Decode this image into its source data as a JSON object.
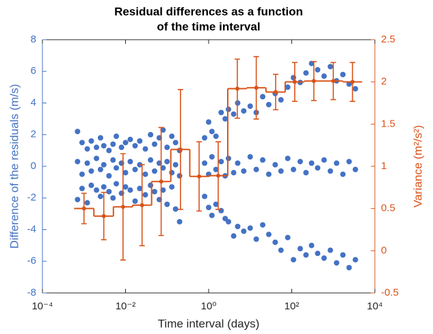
{
  "chart_data": {
    "type": "scatter-step",
    "title": [
      "Residual differences as a function",
      "of the time interval"
    ],
    "x_label": "Time interval (days)",
    "y_label": "Difference of the residuals (m/s)",
    "y2_label": "Variance (m²/s²)",
    "x_scale": "log",
    "xlim": [
      0.0001,
      10000
    ],
    "xticks": [
      {
        "value": 0.0001,
        "label": "10⁻⁴"
      },
      {
        "value": 0.01,
        "label": "10⁻²"
      },
      {
        "value": 1,
        "label": "10⁰"
      },
      {
        "value": 100,
        "label": "10²"
      },
      {
        "value": 10000,
        "label": "10⁴"
      }
    ],
    "ylim": [
      -8,
      8
    ],
    "yticks": [
      -8,
      -6,
      -4,
      -2,
      0,
      2,
      4,
      6,
      8
    ],
    "y2lim": [
      -0.5,
      2.5
    ],
    "y2ticks": [
      -0.5,
      0,
      0.5,
      1,
      1.5,
      2,
      2.5
    ],
    "series": [
      {
        "type": "scatter",
        "color": "#4472c4",
        "x": [
          0.0007,
          0.0007,
          0.0007,
          0.0009,
          0.0009,
          0.0009,
          0.0012,
          0.0012,
          0.0012,
          0.0015,
          0.0015,
          0.0015,
          0.002,
          0.002,
          0.002,
          0.0025,
          0.0025,
          0.0025,
          0.003,
          0.003,
          0.003,
          0.004,
          0.004,
          0.004,
          0.005,
          0.005,
          0.005,
          0.006,
          0.006,
          0.006,
          0.008,
          0.008,
          0.008,
          0.01,
          0.01,
          0.01,
          0.013,
          0.013,
          0.013,
          0.017,
          0.017,
          0.017,
          0.022,
          0.022,
          0.022,
          0.03,
          0.03,
          0.03,
          0.04,
          0.04,
          0.04,
          0.05,
          0.05,
          0.05,
          0.065,
          0.065,
          0.065,
          0.08,
          0.08,
          0.08,
          0.1,
          0.1,
          0.1,
          0.13,
          0.13,
          0.13,
          0.16,
          0.16,
          0.16,
          0.2,
          0.2,
          0.2,
          0.8,
          0.8,
          0.8,
          1.0,
          1.0,
          1.0,
          1.2,
          1.2,
          1.2,
          1.5,
          1.5,
          1.5,
          2.0,
          2.0,
          2.0,
          2.5,
          2.5,
          2.5,
          3,
          3,
          3,
          4,
          4,
          4,
          5,
          5,
          5,
          7,
          7,
          7,
          10,
          10,
          10,
          14,
          14,
          14,
          20,
          20,
          20,
          28,
          28,
          28,
          40,
          40,
          40,
          55,
          55,
          55,
          80,
          80,
          80,
          110,
          110,
          110,
          160,
          160,
          160,
          220,
          220,
          220,
          300,
          300,
          300,
          420,
          420,
          420,
          600,
          600,
          600,
          850,
          850,
          850,
          1200,
          1200,
          1200,
          1700,
          1700,
          1700,
          2400,
          2400,
          2400,
          3400,
          3400,
          3400
        ],
        "values": [
          2.2,
          0.3,
          -2.1,
          1.5,
          -0.5,
          -1.4,
          1.1,
          0.2,
          -2.3,
          1.6,
          -0.3,
          -1.2,
          1.2,
          0.5,
          -1.5,
          1.8,
          -0.2,
          -1.9,
          1.3,
          0.1,
          -1.3,
          1.0,
          -0.6,
          -1.6,
          1.4,
          0.4,
          -2.0,
          1.9,
          -0.1,
          -1.1,
          1.2,
          0.2,
          -1.7,
          1.5,
          -0.4,
          -1.3,
          1.7,
          0.3,
          -1.5,
          1.3,
          -0.2,
          -2.2,
          1.6,
          0.1,
          -1.4,
          1.1,
          -0.5,
          -1.8,
          2.0,
          0.4,
          -1.2,
          1.4,
          -0.3,
          -1.6,
          1.8,
          0.2,
          -2.1,
          2.3,
          -0.1,
          -1.5,
          1.2,
          0.3,
          -2.4,
          1.9,
          -0.4,
          -1.3,
          1.5,
          0.1,
          -2.7,
          1.0,
          -0.6,
          -3.5,
          1.8,
          0.2,
          -1.9,
          2.8,
          -0.5,
          -2.6,
          2.2,
          0.6,
          -3.1,
          1.9,
          -0.2,
          -2.4,
          3.4,
          0.3,
          -2.8,
          3.0,
          -0.6,
          -3.3,
          3.6,
          0.5,
          -3.5,
          3.3,
          -0.4,
          -4.4,
          4.0,
          0.2,
          -3.8,
          3.5,
          -0.3,
          -4.1,
          3.8,
          0.6,
          -3.9,
          3.4,
          -0.2,
          -4.6,
          4.4,
          0.4,
          -3.7,
          3.9,
          -0.5,
          -4.3,
          4.6,
          0.1,
          -4.8,
          4.2,
          -0.3,
          -5.3,
          5.0,
          0.5,
          -4.5,
          5.6,
          -0.2,
          -5.9,
          5.3,
          0.3,
          -5.2,
          5.9,
          -0.4,
          -5.6,
          6.5,
          0.2,
          -5.0,
          6.1,
          -0.1,
          -5.5,
          5.7,
          0.4,
          -5.8,
          6.3,
          -0.3,
          -5.3,
          5.4,
          0.2,
          -6.1,
          5.8,
          -0.5,
          -5.6,
          5.2,
          0.3,
          -6.4,
          4.9,
          -0.2,
          -5.9
        ]
      },
      {
        "type": "step-errorbar",
        "axis": "y2",
        "color": "#d95319",
        "x": [
          0.001,
          0.003,
          0.0087,
          0.025,
          0.072,
          0.21,
          0.59,
          1.7,
          4.9,
          14,
          41,
          118,
          340,
          1000,
          2900
        ],
        "values": [
          0.5,
          0.41,
          0.52,
          0.54,
          0.82,
          1.2,
          0.88,
          0.89,
          1.92,
          1.93,
          1.88,
          2.0,
          2.01,
          2.01,
          2.0
        ],
        "errors": [
          0.18,
          0.28,
          0.63,
          0.48,
          0.64,
          0.71,
          0.41,
          0.4,
          0.35,
          0.37,
          0.21,
          0.23,
          0.23,
          0.22,
          0.23
        ]
      }
    ]
  }
}
